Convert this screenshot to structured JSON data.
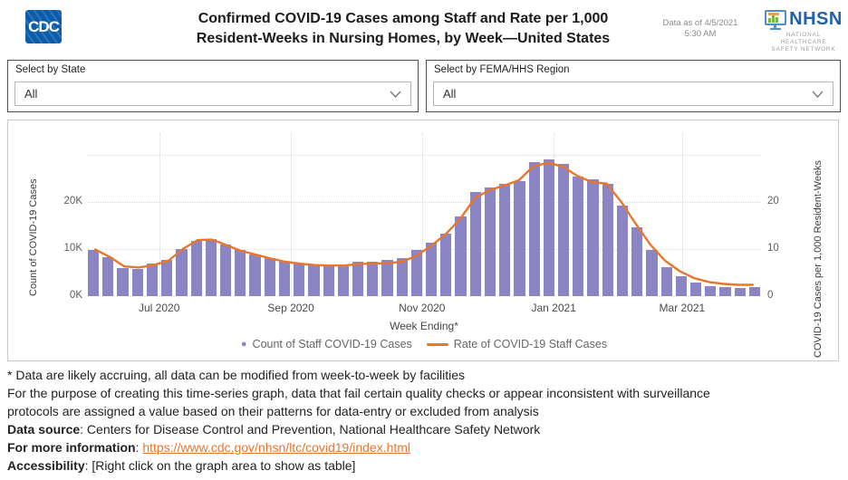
{
  "header": {
    "cdc_logo_text": "CDC",
    "title_line1": "Confirmed COVID-19 Cases among Staff and Rate per 1,000",
    "title_line2": "Resident-Weeks in Nursing Homes, by Week—United States",
    "data_as_of_line1": "Data as of 4/5/2021",
    "data_as_of_line2": "5:30 AM",
    "nhsn_acronym": "NHSN",
    "nhsn_caption_line1": "NATIONAL HEALTHCARE",
    "nhsn_caption_line2": "SAFETY NETWORK"
  },
  "filters": {
    "state": {
      "label": "Select by State",
      "value": "All"
    },
    "region": {
      "label": "Select by FEMA/HHS Region",
      "value": "All"
    }
  },
  "chart_data": {
    "type": "bar",
    "title": "",
    "xlabel": "Week Ending*",
    "ylabel_left": "Count of COVID-19 Cases",
    "ylabel_right": "COVID-19 Cases per 1,000 Resident-Weeks",
    "x_tick_labels": [
      "Jul 2020",
      "Sep 2020",
      "Nov 2020",
      "Jan 2021",
      "Mar 2021"
    ],
    "y_left_tick_labels": [
      "0K",
      "10K",
      "20K"
    ],
    "y_right_tick_labels": [
      "0",
      "10",
      "20"
    ],
    "ylim_left_thousands": [
      0,
      34.6
    ],
    "ylim_right_rate": [
      0,
      34.6
    ],
    "grid": "dotted",
    "legend_position": "bottom-center",
    "series": [
      {
        "name": "Count of Staff COVID-19 Cases",
        "type": "bar",
        "color": "#8B85C6",
        "unit": "thousand cases (weekly)",
        "values": [
          9.9,
          8.2,
          6.0,
          5.8,
          6.9,
          7.7,
          10.1,
          11.8,
          12.1,
          11.0,
          9.8,
          8.8,
          8.1,
          7.4,
          6.9,
          6.7,
          6.8,
          6.7,
          7.4,
          7.3,
          7.7,
          8.0,
          9.9,
          11.4,
          13.3,
          16.9,
          22.1,
          23.0,
          23.8,
          24.4,
          28.5,
          29.0,
          28.1,
          25.3,
          24.9,
          23.8,
          19.2,
          14.7,
          9.8,
          6.2,
          4.2,
          2.8,
          2.2,
          1.9,
          1.7,
          2.0
        ]
      },
      {
        "name": "Rate of COVID-19 Staff Cases",
        "type": "line",
        "color": "#E8762C",
        "unit": "cases per 1,000 resident-weeks",
        "values": [
          9.9,
          8.3,
          6.3,
          6.1,
          6.6,
          7.5,
          10.0,
          11.9,
          12.0,
          10.8,
          9.6,
          8.8,
          8.0,
          7.3,
          6.9,
          6.6,
          6.5,
          6.5,
          6.8,
          6.9,
          7.0,
          7.3,
          8.6,
          10.7,
          13.2,
          16.5,
          20.9,
          22.5,
          23.5,
          24.6,
          27.6,
          28.3,
          27.5,
          25.5,
          24.2,
          23.9,
          20.0,
          15.3,
          10.9,
          7.5,
          5.3,
          3.8,
          3.0,
          2.6,
          2.4,
          2.4
        ]
      }
    ]
  },
  "footnotes": {
    "line1": "* Data are likely accruing, all data can be modified from week-to-week by facilities",
    "line2": "For the purpose of creating this time-series graph, data that fail certain quality checks or appear inconsistent with surveillance",
    "line3": "protocols are assigned a value based on their patterns for data-entry or excluded from analysis",
    "data_source_label": "Data source",
    "data_source_text": ": Centers for Disease Control and Prevention, National Healthcare Safety Network",
    "more_info_label": "For more information",
    "more_info_sep": ": ",
    "more_info_link": "https://www.cdc.gov/nhsn/ltc/covid19/index.html",
    "accessibility_label": "Accessibility",
    "accessibility_text": ": [Right click on the graph area to show as table]"
  },
  "colors": {
    "bar": "#8B85C6",
    "line": "#E8762C",
    "link": "#E8762C",
    "cdc_blue": "#0B5CAB",
    "nhsn_blue": "#1F5FAC"
  }
}
